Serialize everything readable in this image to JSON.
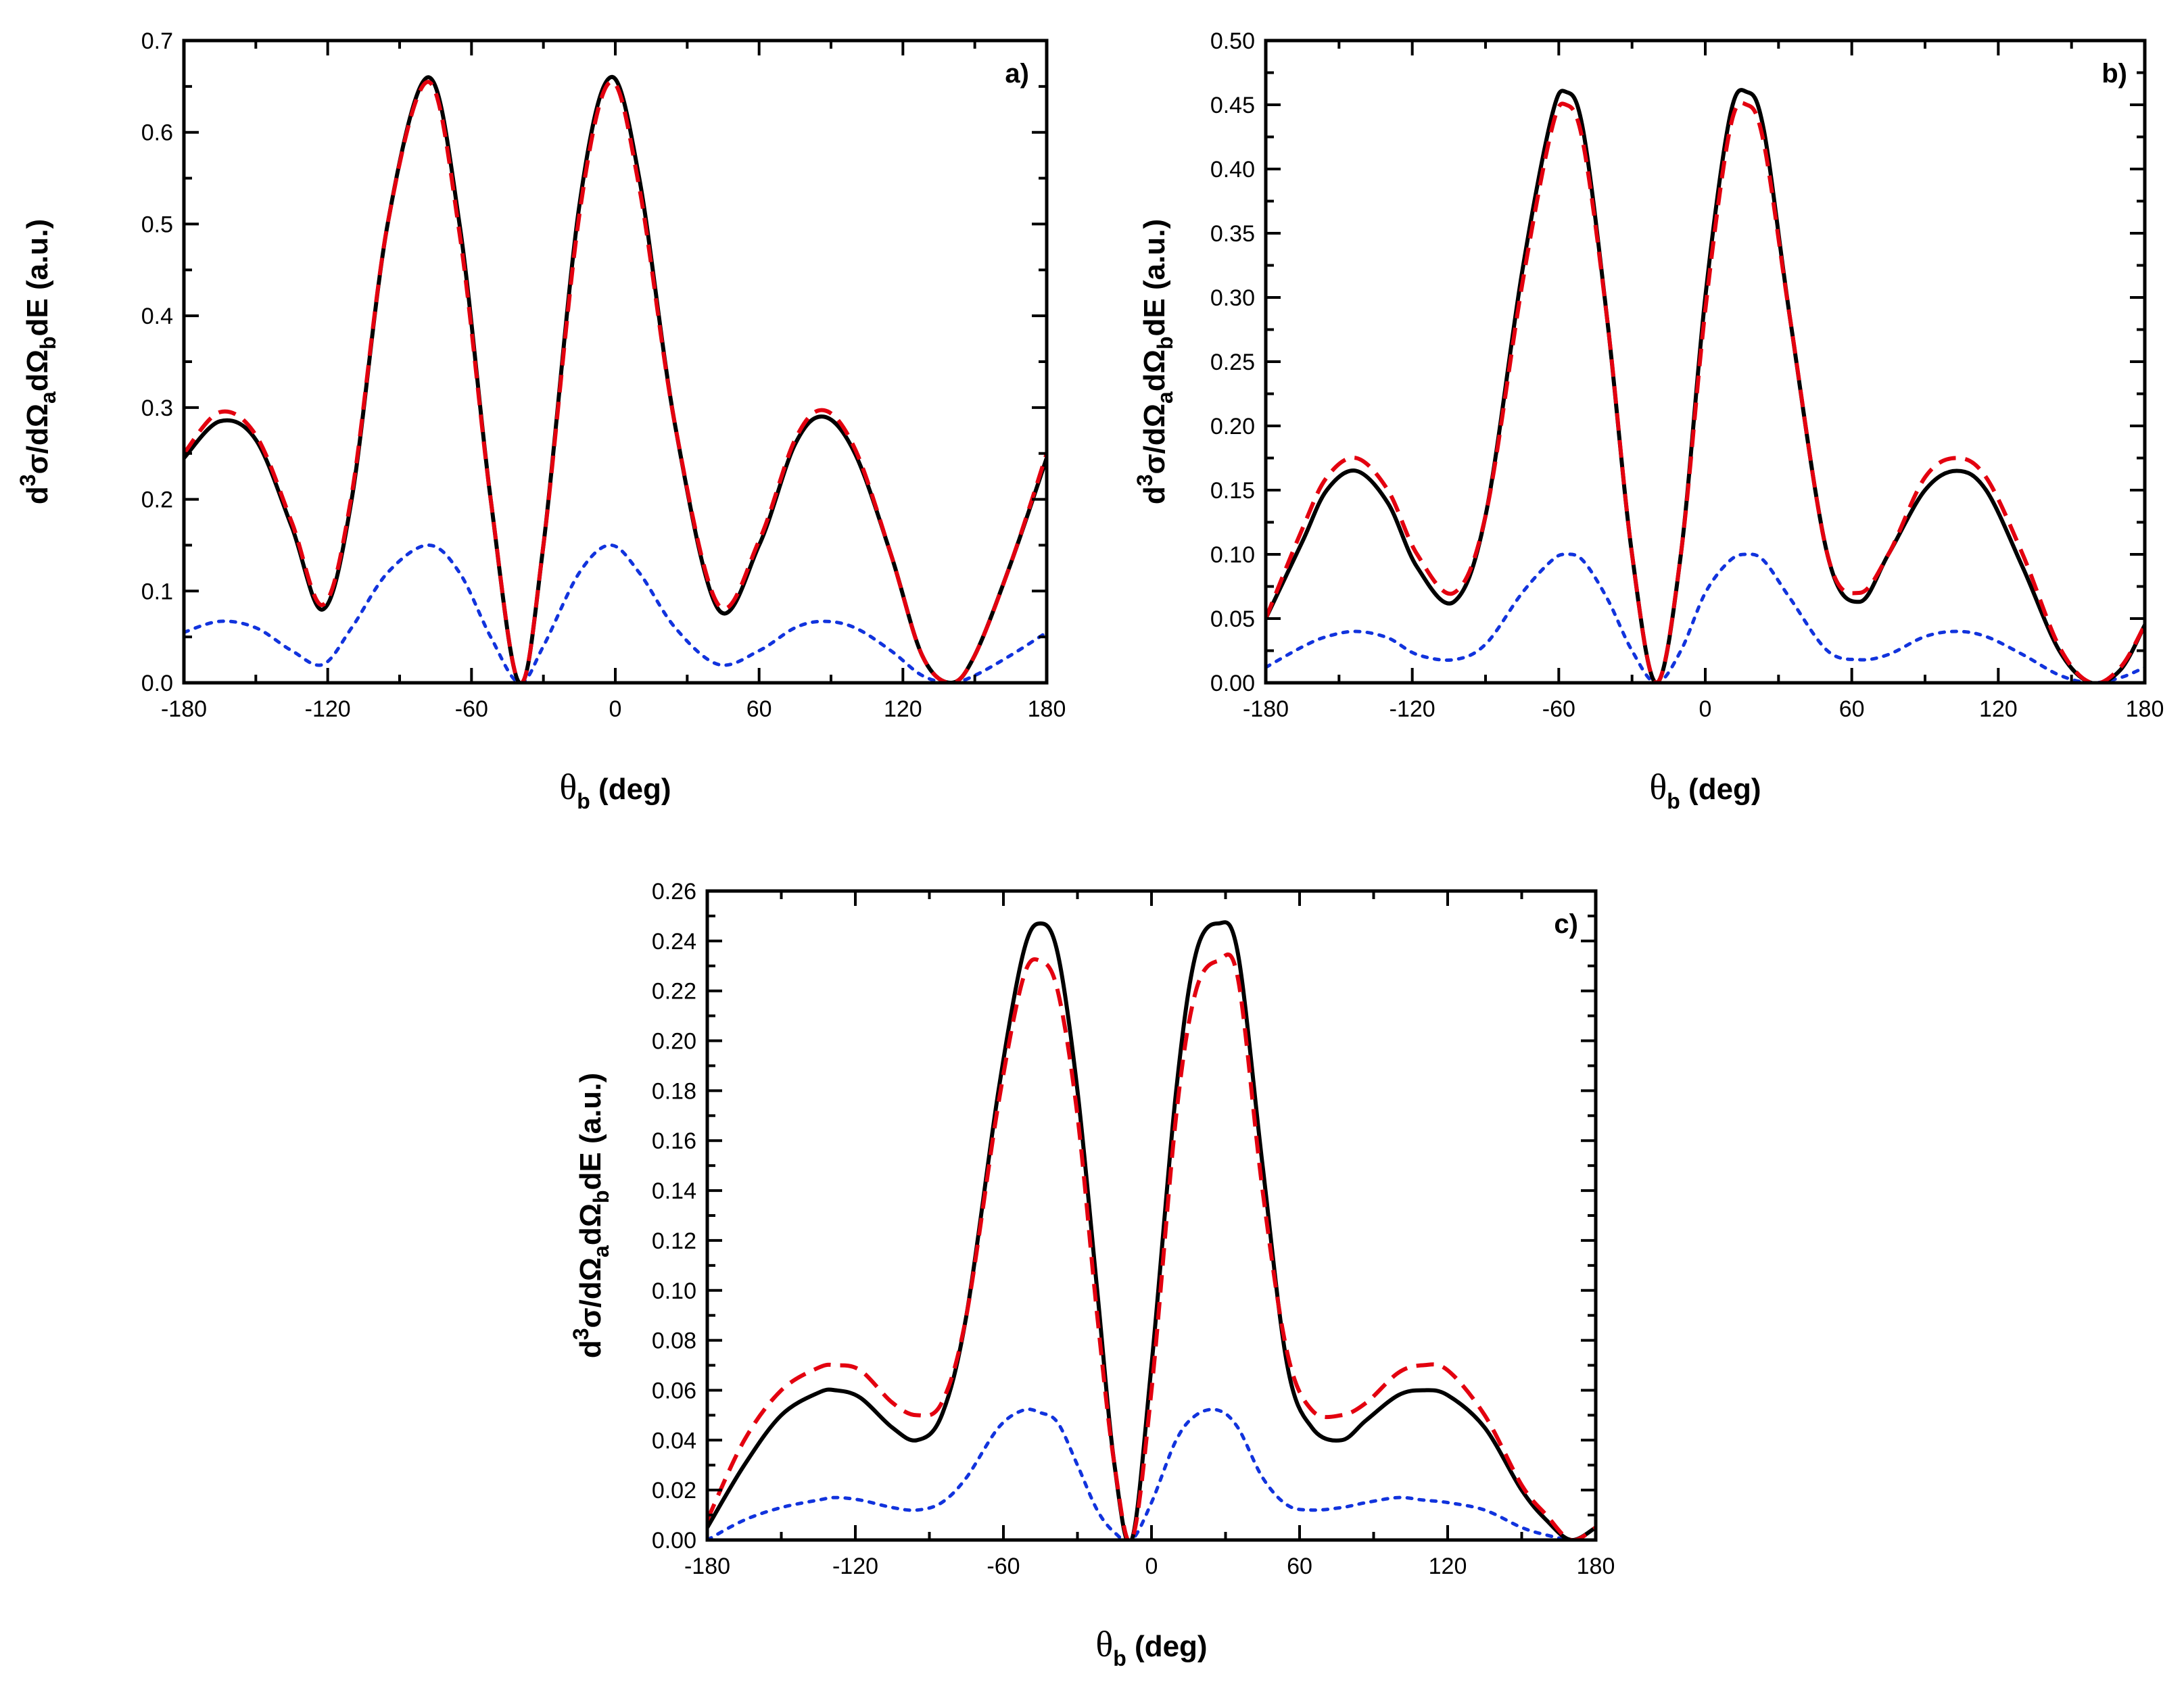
{
  "chart_data": [
    {
      "type": "line",
      "panel_label": "a)",
      "xlabel_symbol": "θ",
      "xlabel_sub": "b",
      "xlabel_rest": " (deg)",
      "ylabel": {
        "d": "d",
        "sup": "3",
        "mid1": "σ/dΩ",
        "sub_a": "a",
        "mid2": "dΩ",
        "sub_b": "b",
        "end": "dE (a.u.)"
      },
      "xlim": [
        -180,
        180
      ],
      "ylim": [
        0,
        0.7
      ],
      "xticks": [
        "-180",
        "-120",
        "-60",
        "0",
        "60",
        "120",
        "180"
      ],
      "xtick_values": [
        -180,
        -120,
        -60,
        0,
        60,
        120,
        180
      ],
      "yticks": [
        "0.0",
        "0.1",
        "0.2",
        "0.3",
        "0.4",
        "0.5",
        "0.6",
        "0.7"
      ],
      "ytick_values": [
        0,
        0.1,
        0.2,
        0.3,
        0.4,
        0.5,
        0.6,
        0.7
      ],
      "grid": false,
      "series": [
        {
          "name": "solid",
          "color": "#000000",
          "style": "solid",
          "x": [
            -180,
            -165,
            -150,
            -135,
            -122,
            -110,
            -95,
            -78,
            -65,
            -52,
            -40,
            -30,
            -15,
            -2,
            10,
            25,
            43,
            60,
            75,
            87,
            100,
            115,
            128,
            140,
            150,
            165,
            180
          ],
          "y": [
            0.245,
            0.285,
            0.265,
            0.17,
            0.08,
            0.2,
            0.5,
            0.66,
            0.5,
            0.2,
            0.0,
            0.15,
            0.52,
            0.66,
            0.55,
            0.28,
            0.08,
            0.15,
            0.26,
            0.29,
            0.25,
            0.14,
            0.03,
            0.0,
            0.03,
            0.13,
            0.245
          ]
        },
        {
          "name": "dashed",
          "color": "#e3000f",
          "style": "dashed",
          "x": [
            -180,
            -165,
            -150,
            -135,
            -122,
            -110,
            -95,
            -78,
            -65,
            -52,
            -40,
            -30,
            -15,
            -2,
            10,
            25,
            43,
            60,
            75,
            87,
            100,
            115,
            128,
            140,
            150,
            165,
            180
          ],
          "y": [
            0.25,
            0.295,
            0.27,
            0.175,
            0.085,
            0.205,
            0.5,
            0.655,
            0.49,
            0.2,
            0.0,
            0.15,
            0.51,
            0.655,
            0.54,
            0.28,
            0.085,
            0.155,
            0.265,
            0.297,
            0.255,
            0.14,
            0.03,
            0.0,
            0.03,
            0.13,
            0.25
          ]
        },
        {
          "name": "dotted",
          "color": "#1133dd",
          "style": "dotted",
          "x": [
            -180,
            -165,
            -150,
            -135,
            -122,
            -110,
            -95,
            -78,
            -65,
            -52,
            -40,
            -30,
            -15,
            -2,
            10,
            25,
            43,
            60,
            75,
            87,
            100,
            115,
            128,
            140,
            150,
            165,
            180
          ],
          "y": [
            0.055,
            0.067,
            0.06,
            0.035,
            0.02,
            0.06,
            0.12,
            0.15,
            0.12,
            0.05,
            0.0,
            0.04,
            0.12,
            0.15,
            0.12,
            0.06,
            0.02,
            0.035,
            0.06,
            0.067,
            0.06,
            0.035,
            0.008,
            0.0,
            0.008,
            0.03,
            0.055
          ]
        }
      ]
    },
    {
      "type": "line",
      "panel_label": "b)",
      "xlabel_symbol": "θ",
      "xlabel_sub": "b",
      "xlabel_rest": " (deg)",
      "ylabel": {
        "d": "d",
        "sup": "3",
        "mid1": "σ/dΩ",
        "sub_a": "a",
        "mid2": "dΩ",
        "sub_b": "b",
        "end": "dE (a.u.)"
      },
      "xlim": [
        -180,
        180
      ],
      "ylim": [
        0,
        0.5
      ],
      "xticks": [
        "-180",
        "-120",
        "-60",
        "0",
        "60",
        "120",
        "180"
      ],
      "xtick_values": [
        -180,
        -120,
        -60,
        0,
        60,
        120,
        180
      ],
      "yticks": [
        "0.00",
        "0.05",
        "0.10",
        "0.15",
        "0.20",
        "0.25",
        "0.30",
        "0.35",
        "0.40",
        "0.45",
        "0.50"
      ],
      "ytick_values": [
        0,
        0.05,
        0.1,
        0.15,
        0.2,
        0.25,
        0.3,
        0.35,
        0.4,
        0.45,
        0.5
      ],
      "grid": false,
      "series": [
        {
          "name": "solid",
          "color": "#000000",
          "style": "solid",
          "x": [
            -180,
            -165,
            -155,
            -143,
            -130,
            -118,
            -103,
            -90,
            -75,
            -63,
            -57,
            -50,
            -40,
            -30,
            -20,
            -10,
            0,
            10,
            17,
            24,
            35,
            50,
            63,
            75,
            90,
            103,
            115,
            130,
            145,
            158,
            170,
            180
          ],
          "y": [
            0.05,
            0.11,
            0.15,
            0.165,
            0.14,
            0.09,
            0.063,
            0.13,
            0.32,
            0.44,
            0.46,
            0.43,
            0.28,
            0.1,
            0.0,
            0.1,
            0.3,
            0.44,
            0.46,
            0.43,
            0.28,
            0.1,
            0.063,
            0.1,
            0.15,
            0.165,
            0.15,
            0.09,
            0.025,
            0.0,
            0.01,
            0.045
          ]
        },
        {
          "name": "dashed",
          "color": "#e3000f",
          "style": "dashed",
          "x": [
            -180,
            -165,
            -155,
            -143,
            -130,
            -118,
            -103,
            -90,
            -75,
            -63,
            -57,
            -50,
            -40,
            -30,
            -20,
            -10,
            0,
            10,
            17,
            24,
            35,
            50,
            63,
            75,
            90,
            103,
            115,
            130,
            145,
            158,
            170,
            180
          ],
          "y": [
            0.05,
            0.12,
            0.16,
            0.175,
            0.15,
            0.1,
            0.07,
            0.13,
            0.31,
            0.43,
            0.45,
            0.42,
            0.28,
            0.1,
            0.0,
            0.1,
            0.29,
            0.43,
            0.45,
            0.42,
            0.28,
            0.1,
            0.07,
            0.1,
            0.16,
            0.175,
            0.16,
            0.1,
            0.028,
            0.0,
            0.012,
            0.045
          ]
        },
        {
          "name": "dotted",
          "color": "#1133dd",
          "style": "dotted",
          "x": [
            -180,
            -165,
            -155,
            -143,
            -130,
            -118,
            -103,
            -90,
            -75,
            -63,
            -57,
            -50,
            -40,
            -30,
            -20,
            -10,
            0,
            10,
            17,
            24,
            35,
            50,
            63,
            75,
            90,
            103,
            115,
            130,
            145,
            158,
            170,
            180
          ],
          "y": [
            0.012,
            0.028,
            0.036,
            0.04,
            0.035,
            0.022,
            0.018,
            0.03,
            0.07,
            0.095,
            0.1,
            0.095,
            0.065,
            0.025,
            0.0,
            0.025,
            0.07,
            0.095,
            0.1,
            0.095,
            0.065,
            0.025,
            0.018,
            0.022,
            0.036,
            0.04,
            0.036,
            0.022,
            0.006,
            0.0,
            0.004,
            0.012
          ]
        }
      ]
    },
    {
      "type": "line",
      "panel_label": "c)",
      "xlabel_symbol": "θ",
      "xlabel_sub": "b",
      "xlabel_rest": " (deg)",
      "ylabel": {
        "d": "d",
        "sup": "3",
        "mid1": "σ/dΩ",
        "sub_a": "a",
        "mid2": "dΩ",
        "sub_b": "b",
        "end": "dE (a.u.)"
      },
      "xlim": [
        -180,
        180
      ],
      "ylim": [
        0,
        0.26
      ],
      "xticks": [
        "-180",
        "-120",
        "-60",
        "0",
        "60",
        "120",
        "180"
      ],
      "xtick_values": [
        -180,
        -120,
        -60,
        0,
        60,
        120,
        180
      ],
      "yticks": [
        "0.00",
        "0.02",
        "0.04",
        "0.06",
        "0.08",
        "0.10",
        "0.12",
        "0.14",
        "0.16",
        "0.18",
        "0.20",
        "0.22",
        "0.24",
        "0.26"
      ],
      "ytick_values": [
        0,
        0.02,
        0.04,
        0.06,
        0.08,
        0.1,
        0.12,
        0.14,
        0.16,
        0.18,
        0.2,
        0.22,
        0.24,
        0.26
      ],
      "grid": false,
      "series": [
        {
          "name": "solid",
          "color": "#000000",
          "style": "solid",
          "x": [
            -180,
            -165,
            -150,
            -135,
            -128,
            -118,
            -105,
            -95,
            -85,
            -75,
            -62,
            -52,
            -45,
            -38,
            -30,
            -22,
            -15,
            -8,
            0,
            10,
            18,
            27,
            35,
            45,
            55,
            65,
            77,
            87,
            100,
            110,
            120,
            135,
            150,
            160,
            170,
            180
          ],
          "y": [
            0.005,
            0.03,
            0.05,
            0.059,
            0.06,
            0.057,
            0.045,
            0.04,
            0.05,
            0.09,
            0.18,
            0.235,
            0.247,
            0.235,
            0.18,
            0.1,
            0.03,
            0.0,
            0.07,
            0.18,
            0.235,
            0.247,
            0.235,
            0.15,
            0.07,
            0.045,
            0.04,
            0.048,
            0.058,
            0.06,
            0.058,
            0.045,
            0.02,
            0.008,
            0.0,
            0.005
          ]
        },
        {
          "name": "dashed",
          "color": "#e3000f",
          "style": "dashed",
          "x": [
            -180,
            -165,
            -150,
            -135,
            -128,
            -118,
            -105,
            -95,
            -85,
            -75,
            -62,
            -52,
            -45,
            -38,
            -30,
            -22,
            -15,
            -8,
            0,
            10,
            18,
            27,
            35,
            45,
            55,
            65,
            77,
            87,
            100,
            110,
            120,
            135,
            150,
            160,
            170,
            180
          ],
          "y": [
            0.008,
            0.04,
            0.06,
            0.069,
            0.07,
            0.068,
            0.055,
            0.05,
            0.055,
            0.09,
            0.175,
            0.225,
            0.232,
            0.22,
            0.17,
            0.09,
            0.03,
            0.0,
            0.06,
            0.17,
            0.22,
            0.232,
            0.225,
            0.14,
            0.075,
            0.052,
            0.05,
            0.055,
            0.067,
            0.07,
            0.068,
            0.05,
            0.022,
            0.01,
            0.0,
            0.005
          ]
        },
        {
          "name": "dotted",
          "color": "#1133dd",
          "style": "dotted",
          "x": [
            -180,
            -165,
            -150,
            -135,
            -128,
            -118,
            -105,
            -95,
            -85,
            -75,
            -62,
            -52,
            -45,
            -38,
            -30,
            -22,
            -15,
            -8,
            0,
            10,
            18,
            27,
            35,
            45,
            55,
            65,
            77,
            87,
            100,
            110,
            120,
            135,
            150,
            160,
            170,
            180
          ],
          "y": [
            0.0,
            0.008,
            0.013,
            0.016,
            0.017,
            0.016,
            0.013,
            0.012,
            0.015,
            0.025,
            0.045,
            0.052,
            0.051,
            0.047,
            0.03,
            0.012,
            0.003,
            0.0,
            0.015,
            0.04,
            0.05,
            0.052,
            0.045,
            0.025,
            0.014,
            0.012,
            0.013,
            0.015,
            0.017,
            0.016,
            0.015,
            0.012,
            0.005,
            0.002,
            0.0,
            0.0
          ]
        }
      ]
    }
  ]
}
